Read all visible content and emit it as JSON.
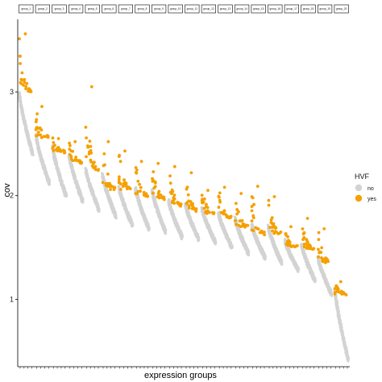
{
  "chart_data": {
    "type": "scatter",
    "title": "",
    "xlabel": "expression groups",
    "ylabel": "cov",
    "ylim": [
      0.35,
      3.7
    ],
    "yticks": [
      1,
      2,
      3
    ],
    "grid": false,
    "legend": {
      "title": "HVF",
      "placement": "right",
      "entries": [
        "no",
        "yes"
      ]
    },
    "colors": {
      "no": "#d3d3d3",
      "yes": "#f5a000"
    },
    "facets": [
      {
        "label": "group_1",
        "no": [
          2.98,
          2.4
        ],
        "yes": [
          3.56,
          3.0
        ]
      },
      {
        "label": "group_2",
        "no": [
          2.58,
          2.12
        ],
        "yes": [
          2.86,
          2.56
        ]
      },
      {
        "label": "group_3",
        "no": [
          2.47,
          2.0
        ],
        "yes": [
          2.55,
          2.42
        ]
      },
      {
        "label": "group_4",
        "no": [
          2.39,
          1.95
        ],
        "yes": [
          2.52,
          2.32
        ]
      },
      {
        "label": "group_5",
        "no": [
          2.25,
          1.86
        ],
        "yes": [
          3.05,
          2.24
        ]
      },
      {
        "label": "group_6",
        "no": [
          2.21,
          1.8
        ],
        "yes": [
          2.52,
          2.06
        ]
      },
      {
        "label": "group_7",
        "no": [
          2.08,
          1.72
        ],
        "yes": [
          2.43,
          2.05
        ]
      },
      {
        "label": "group_8",
        "no": [
          2.07,
          1.68
        ],
        "yes": [
          2.33,
          2.0
        ]
      },
      {
        "label": "group_9",
        "no": [
          2.05,
          1.65
        ],
        "yes": [
          2.31,
          1.97
        ]
      },
      {
        "label": "group_10",
        "no": [
          1.95,
          1.6
        ],
        "yes": [
          2.28,
          1.9
        ]
      },
      {
        "label": "group_11",
        "no": [
          1.92,
          1.58
        ],
        "yes": [
          2.22,
          1.85
        ]
      },
      {
        "label": "group_12",
        "no": [
          1.88,
          1.55
        ],
        "yes": [
          2.05,
          1.82
        ]
      },
      {
        "label": "group_13",
        "no": [
          1.83,
          1.5
        ],
        "yes": [
          2.08,
          1.78
        ]
      },
      {
        "label": "group_14",
        "no": [
          1.78,
          1.44
        ],
        "yes": [
          2.02,
          1.7
        ]
      },
      {
        "label": "group_15",
        "no": [
          1.72,
          1.4
        ],
        "yes": [
          2.09,
          1.63
        ]
      },
      {
        "label": "group_16",
        "no": [
          1.7,
          1.35
        ],
        "yes": [
          1.99,
          1.63
        ]
      },
      {
        "label": "group_17",
        "no": [
          1.57,
          1.28
        ],
        "yes": [
          1.7,
          1.5
        ]
      },
      {
        "label": "group_18",
        "no": [
          1.53,
          1.18
        ],
        "yes": [
          1.78,
          1.48
        ]
      },
      {
        "label": "group_19",
        "no": [
          1.4,
          1.05
        ],
        "yes": [
          1.68,
          1.35
        ]
      },
      {
        "label": "group_20",
        "no": [
          1.1,
          0.42
        ],
        "yes": [
          1.17,
          1.05
        ]
      }
    ]
  }
}
